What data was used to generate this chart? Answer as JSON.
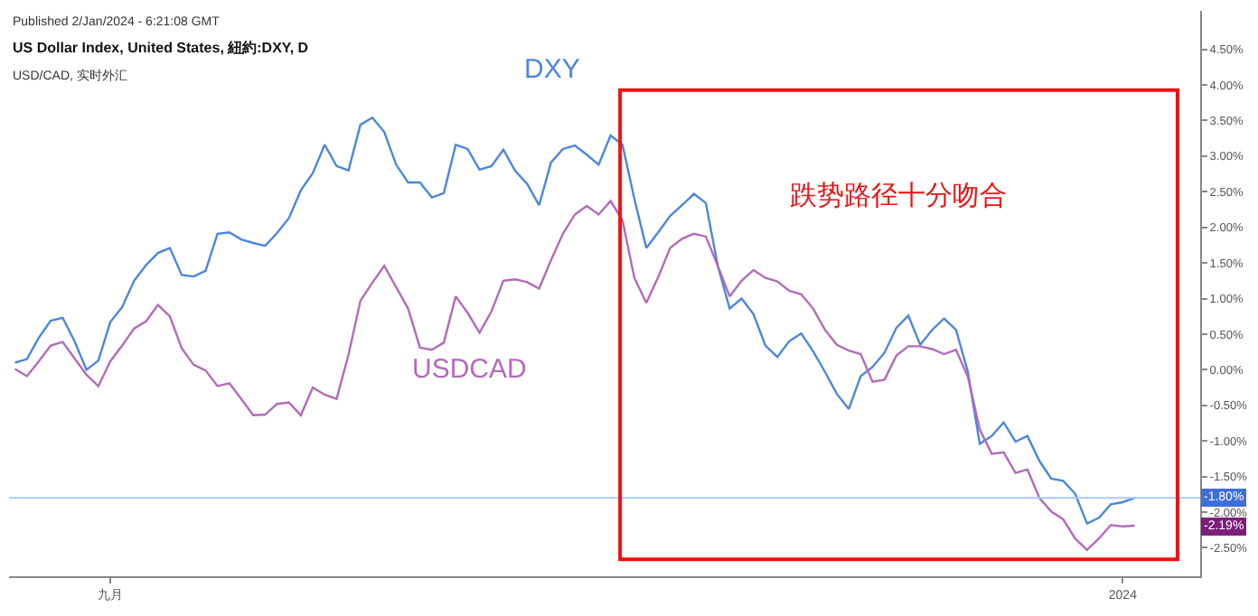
{
  "chart_data": {
    "type": "line",
    "title": "US Dollar Index, United States, 紐約:DXY, D",
    "subtitle": "USD/CAD, 实时外汇",
    "categories": [
      null,
      null,
      null,
      null,
      null,
      null,
      null,
      null,
      "九月",
      null,
      null,
      null,
      null,
      null,
      null,
      null,
      null,
      null,
      null,
      null,
      null,
      null,
      null,
      null,
      null,
      null,
      null,
      null,
      null,
      null,
      null,
      null,
      null,
      null,
      null,
      null,
      null,
      null,
      null,
      null,
      null,
      null,
      null,
      null,
      null,
      null,
      null,
      null,
      null,
      null,
      null,
      null,
      null,
      null,
      null,
      null,
      null,
      null,
      null,
      null,
      null,
      null,
      null,
      null,
      null,
      null,
      null,
      null,
      null,
      null,
      null,
      null,
      null,
      null,
      null,
      null,
      null,
      null,
      null,
      null,
      null,
      null,
      null,
      null,
      null,
      null,
      null,
      null,
      null,
      null,
      null,
      null,
      null,
      "2024",
      null,
      null,
      null,
      null,
      null,
      null
    ],
    "series": [
      {
        "name": "DXY",
        "color": "#4a86e0",
        "values": [
          0.1,
          0.15,
          0.45,
          0.69,
          0.73,
          0.4,
          0.0,
          0.13,
          0.67,
          0.88,
          1.25,
          1.47,
          1.64,
          1.71,
          1.33,
          1.31,
          1.39,
          1.91,
          1.93,
          1.83,
          1.78,
          1.74,
          1.92,
          2.13,
          2.52,
          2.76,
          3.16,
          2.86,
          2.8,
          3.44,
          3.54,
          3.34,
          2.88,
          2.63,
          2.63,
          2.42,
          2.48,
          3.16,
          3.1,
          2.81,
          2.86,
          3.09,
          2.79,
          2.61,
          2.31,
          2.91,
          3.1,
          3.15,
          3.02,
          2.88,
          3.29,
          3.16,
          2.4,
          1.71,
          1.93,
          2.16,
          2.31,
          2.47,
          2.34,
          1.46,
          0.86,
          1.0,
          0.78,
          0.34,
          0.18,
          0.4,
          0.51,
          0.26,
          -0.03,
          -0.34,
          -0.55,
          -0.09,
          0.04,
          0.24,
          0.59,
          0.76,
          0.35,
          0.56,
          0.72,
          0.56,
          -0.03,
          -1.04,
          -0.93,
          -0.74,
          -1.01,
          -0.93,
          -1.28,
          -1.53,
          -1.56,
          -1.74,
          -2.16,
          -2.08,
          -1.89,
          -1.86,
          -1.8,
          null,
          null,
          null,
          null,
          null
        ]
      },
      {
        "name": "USDCAD",
        "color": "#b36ab9",
        "values": [
          0.01,
          -0.09,
          0.12,
          0.34,
          0.39,
          0.16,
          -0.07,
          -0.23,
          0.12,
          0.34,
          0.58,
          0.68,
          0.91,
          0.75,
          0.3,
          0.07,
          -0.01,
          -0.23,
          -0.19,
          -0.41,
          -0.64,
          -0.63,
          -0.48,
          -0.46,
          -0.64,
          -0.25,
          -0.35,
          -0.41,
          0.21,
          0.97,
          1.22,
          1.46,
          1.16,
          0.86,
          0.31,
          0.28,
          0.38,
          1.03,
          0.8,
          0.52,
          0.82,
          1.25,
          1.27,
          1.23,
          1.14,
          1.54,
          1.91,
          2.18,
          2.3,
          2.18,
          2.37,
          2.1,
          1.29,
          0.94,
          1.3,
          1.71,
          1.84,
          1.91,
          1.87,
          1.46,
          1.03,
          1.25,
          1.4,
          1.29,
          1.24,
          1.11,
          1.06,
          0.86,
          0.56,
          0.35,
          0.27,
          0.22,
          -0.17,
          -0.14,
          0.2,
          0.33,
          0.33,
          0.29,
          0.22,
          0.28,
          -0.1,
          -0.84,
          -1.18,
          -1.16,
          -1.45,
          -1.4,
          -1.8,
          -1.99,
          -2.1,
          -2.37,
          -2.53,
          -2.37,
          -2.18,
          -2.2,
          -2.19,
          null,
          null,
          null,
          null,
          null
        ]
      }
    ],
    "ylim": [
      -2.9,
      5.04
    ],
    "yticks": [
      {
        "value": 4.5,
        "label": "4.50%"
      },
      {
        "value": 4.0,
        "label": "4.00%"
      },
      {
        "value": 3.5,
        "label": "3.50%"
      },
      {
        "value": 3.0,
        "label": "3.00%"
      },
      {
        "value": 2.5,
        "label": "2.50%"
      },
      {
        "value": 2.0,
        "label": "2.00%"
      },
      {
        "value": 1.5,
        "label": "1.50%"
      },
      {
        "value": 1.0,
        "label": "1.00%"
      },
      {
        "value": 0.5,
        "label": "0.50%"
      },
      {
        "value": 0.0,
        "label": "0.00%"
      },
      {
        "value": -0.5,
        "label": "-0.50%"
      },
      {
        "value": -1.0,
        "label": "-1.00%"
      },
      {
        "value": -1.5,
        "label": "-1.50%"
      },
      {
        "value": -2.0,
        "label": "-2.00%"
      },
      {
        "value": -2.5,
        "label": "-2.50%"
      }
    ],
    "ref_lines": [
      {
        "axis": "y",
        "value": -1.8,
        "label": "-1.80%",
        "color": "#aac8f5"
      }
    ],
    "annotations": [
      {
        "text": "-2.19%",
        "y": -2.19
      },
      "Published 2/Jan/2024 - 6:21:08 GMT",
      "跌势路径十分吻合"
    ],
    "legend": false,
    "marker": "none",
    "line_style": "solid"
  }
}
